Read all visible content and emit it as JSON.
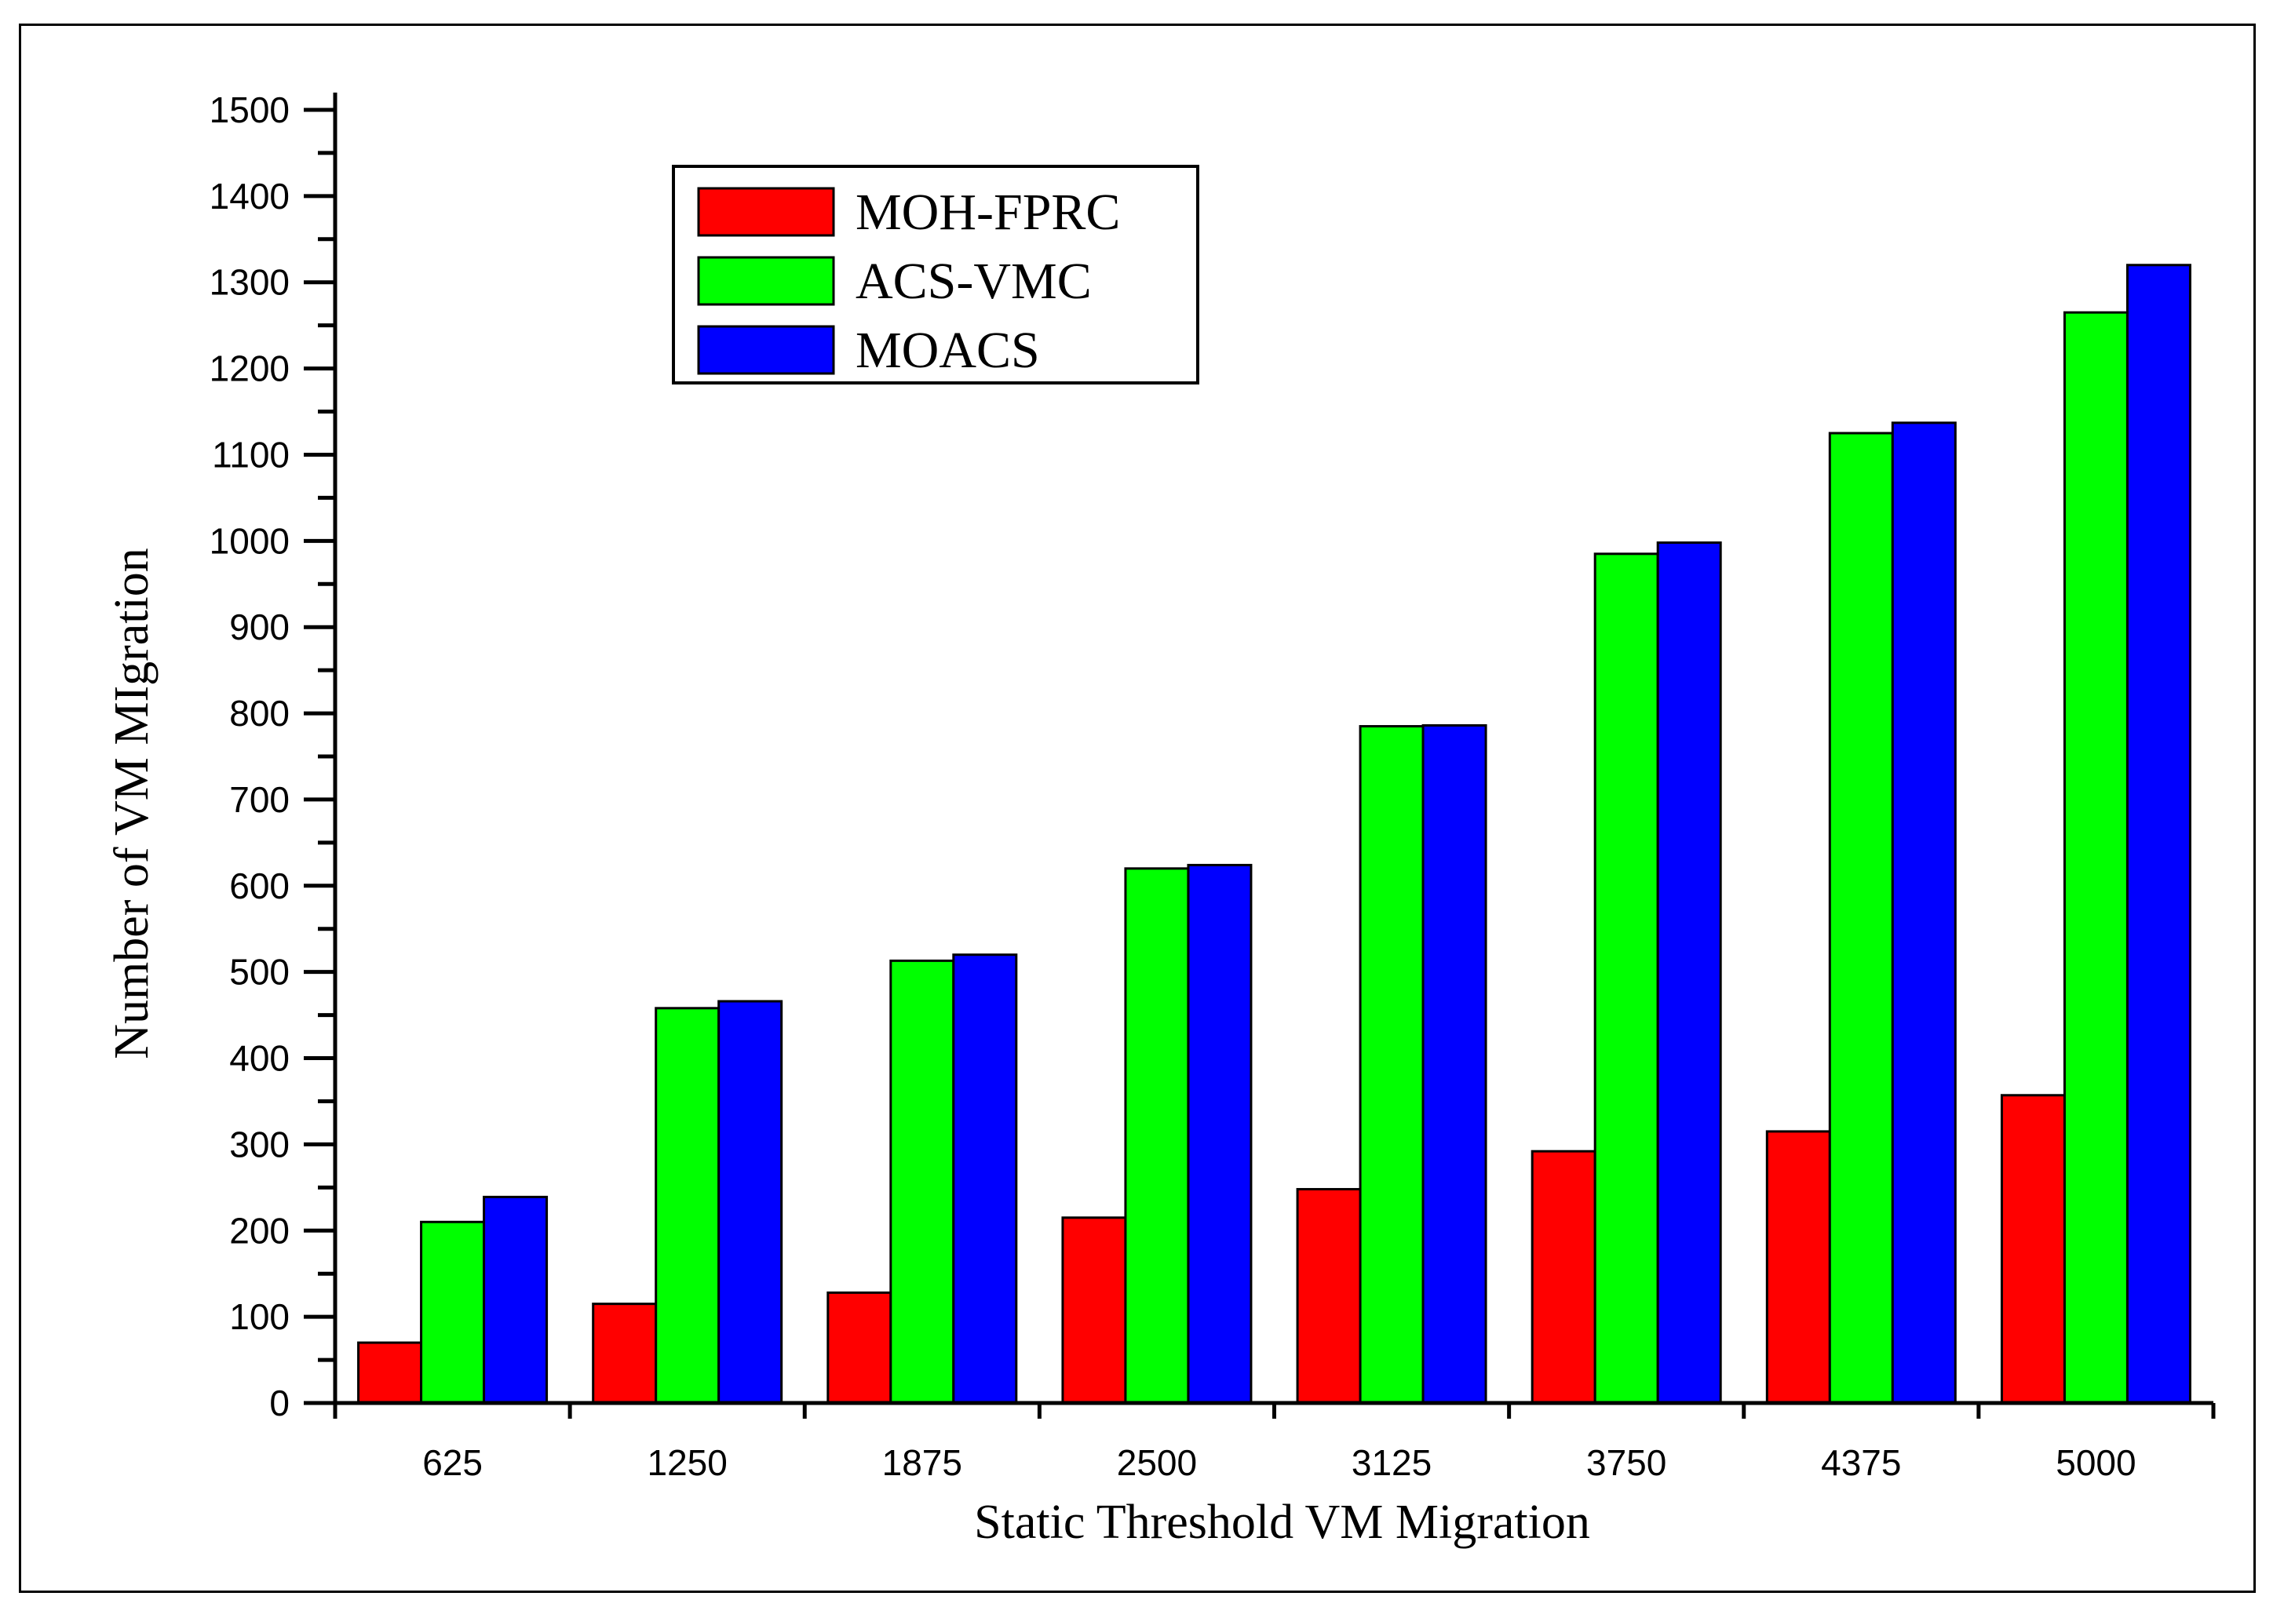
{
  "chart_data": {
    "type": "bar",
    "title": "",
    "xlabel": "Static Threshold VM Migration",
    "ylabel": "Number of VM MIgration",
    "categories": [
      "625",
      "1250",
      "1875",
      "2500",
      "3125",
      "3750",
      "4375",
      "5000"
    ],
    "yticks": [
      "0",
      "100",
      "200",
      "300",
      "400",
      "500",
      "600",
      "700",
      "800",
      "900",
      "1000",
      "1100",
      "1200",
      "1300",
      "1400",
      "1500"
    ],
    "ylim": [
      0,
      1500
    ],
    "grid": false,
    "legend_position": "top-left",
    "series": [
      {
        "name": "MOH-FPRC",
        "color": "#ff0000",
        "values": [
          70,
          115,
          128,
          215,
          248,
          292,
          315,
          357
        ]
      },
      {
        "name": "ACS-VMC",
        "color": "#00ff00",
        "values": [
          210,
          458,
          513,
          620,
          785,
          985,
          1125,
          1265
        ]
      },
      {
        "name": "MOACS",
        "color": "#0000ff",
        "values": [
          239,
          466,
          520,
          624,
          786,
          998,
          1137,
          1320
        ]
      }
    ]
  }
}
